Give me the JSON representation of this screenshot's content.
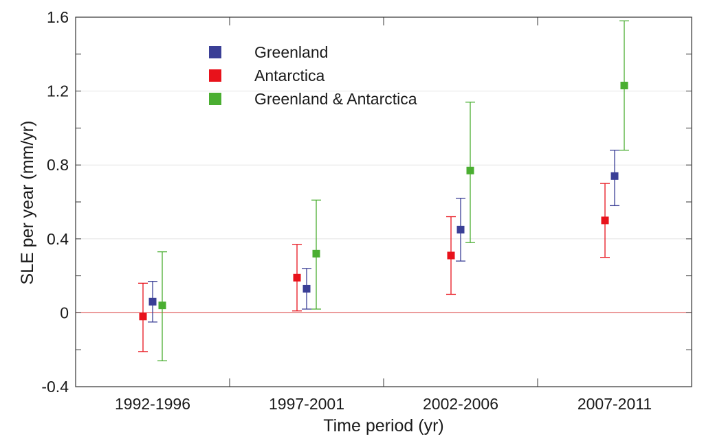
{
  "chart_data": {
    "type": "scatter",
    "xlabel": "Time period (yr)",
    "ylabel": "SLE per year (mm/yr)",
    "ylim": [
      -0.4,
      1.6
    ],
    "yticks": [
      -0.4,
      0,
      0.4,
      0.8,
      1.2,
      1.6
    ],
    "ytick_labels": [
      "-0.4",
      "0",
      "0.4",
      "0.8",
      "1.2",
      "1.6"
    ],
    "categories": [
      "1992-1996",
      "1997-2001",
      "2002-2006",
      "2007-2011"
    ],
    "grid": "horizontal",
    "legend_position": "top-left",
    "zero_line_color": "#e06060",
    "series": [
      {
        "name": "Antarctica",
        "color": "#e8121b",
        "values": [
          -0.02,
          0.19,
          0.31,
          0.5
        ],
        "lower": [
          -0.21,
          0.01,
          0.1,
          0.3
        ],
        "upper": [
          0.16,
          0.37,
          0.52,
          0.7
        ]
      },
      {
        "name": "Greenland",
        "color": "#3a3f96",
        "values": [
          0.06,
          0.13,
          0.45,
          0.74
        ],
        "lower": [
          -0.05,
          0.02,
          0.28,
          0.58
        ],
        "upper": [
          0.17,
          0.24,
          0.62,
          0.88
        ]
      },
      {
        "name": "Greenland & Antarctica",
        "color": "#4aae31",
        "values": [
          0.04,
          0.32,
          0.77,
          1.23
        ],
        "lower": [
          -0.26,
          0.02,
          0.38,
          0.88
        ],
        "upper": [
          0.33,
          0.61,
          1.14,
          1.58
        ]
      }
    ],
    "legend_order": [
      "Greenland",
      "Antarctica",
      "Greenland & Antarctica"
    ]
  }
}
